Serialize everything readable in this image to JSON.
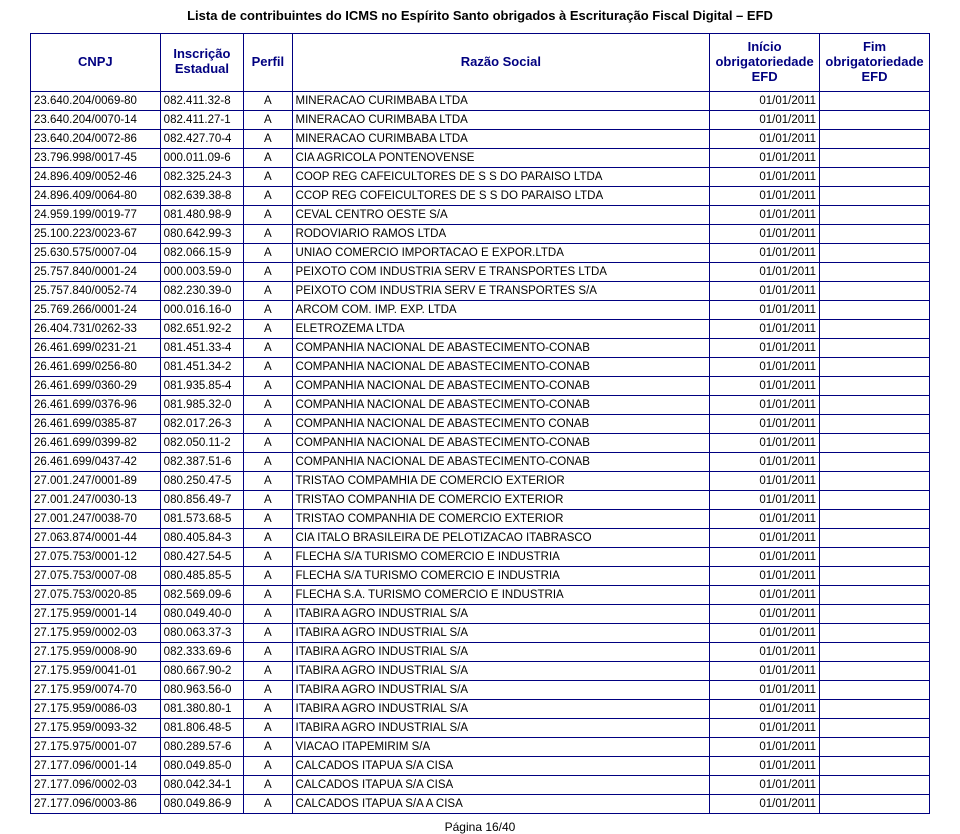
{
  "title": "Lista de contribuintes do ICMS no Espírito Santo obrigados à Escrituração Fiscal Digital – EFD",
  "footer": "Página 16/40",
  "headers": {
    "cnpj": "CNPJ",
    "inscricao": "Inscrição Estadual",
    "perfil": "Perfil",
    "razao": "Razão Social",
    "inicio": "Início obrigatoriedade EFD",
    "fim": "Fim obrigatoriedade EFD"
  },
  "rows": [
    [
      "23.640.204/0069-80",
      "082.411.32-8",
      "A",
      "MINERACAO CURIMBABA LTDA",
      "01/01/2011",
      ""
    ],
    [
      "23.640.204/0070-14",
      "082.411.27-1",
      "A",
      "MINERACAO CURIMBABA LTDA",
      "01/01/2011",
      ""
    ],
    [
      "23.640.204/0072-86",
      "082.427.70-4",
      "A",
      "MINERACAO CURIMBABA LTDA",
      "01/01/2011",
      ""
    ],
    [
      "23.796.998/0017-45",
      "000.011.09-6",
      "A",
      "CIA AGRICOLA PONTENOVENSE",
      "01/01/2011",
      ""
    ],
    [
      "24.896.409/0052-46",
      "082.325.24-3",
      "A",
      "COOP REG CAFEICULTORES DE S S DO PARAISO LTDA",
      "01/01/2011",
      ""
    ],
    [
      "24.896.409/0064-80",
      "082.639.38-8",
      "A",
      "CCOP REG COFEICULTORES DE S S DO PARAISO LTDA",
      "01/01/2011",
      ""
    ],
    [
      "24.959.199/0019-77",
      "081.480.98-9",
      "A",
      "CEVAL CENTRO OESTE S/A",
      "01/01/2011",
      ""
    ],
    [
      "25.100.223/0023-67",
      "080.642.99-3",
      "A",
      "RODOVIARIO RAMOS LTDA",
      "01/01/2011",
      ""
    ],
    [
      "25.630.575/0007-04",
      "082.066.15-9",
      "A",
      "UNIAO COMERCIO IMPORTACAO E EXPOR.LTDA",
      "01/01/2011",
      ""
    ],
    [
      "25.757.840/0001-24",
      "000.003.59-0",
      "A",
      "PEIXOTO COM INDUSTRIA SERV E TRANSPORTES LTDA",
      "01/01/2011",
      ""
    ],
    [
      "25.757.840/0052-74",
      "082.230.39-0",
      "A",
      "PEIXOTO COM INDUSTRIA SERV E TRANSPORTES S/A",
      "01/01/2011",
      ""
    ],
    [
      "25.769.266/0001-24",
      "000.016.16-0",
      "A",
      "ARCOM COM. IMP. EXP. LTDA",
      "01/01/2011",
      ""
    ],
    [
      "26.404.731/0262-33",
      "082.651.92-2",
      "A",
      "ELETROZEMA LTDA",
      "01/01/2011",
      ""
    ],
    [
      "26.461.699/0231-21",
      "081.451.33-4",
      "A",
      "COMPANHIA NACIONAL DE ABASTECIMENTO-CONAB",
      "01/01/2011",
      ""
    ],
    [
      "26.461.699/0256-80",
      "081.451.34-2",
      "A",
      "COMPANHIA NACIONAL DE ABASTECIMENTO-CONAB",
      "01/01/2011",
      ""
    ],
    [
      "26.461.699/0360-29",
      "081.935.85-4",
      "A",
      "COMPANHIA NACIONAL DE ABASTECIMENTO-CONAB",
      "01/01/2011",
      ""
    ],
    [
      "26.461.699/0376-96",
      "081.985.32-0",
      "A",
      "COMPANHIA NACIONAL DE ABASTECIMENTO-CONAB",
      "01/01/2011",
      ""
    ],
    [
      "26.461.699/0385-87",
      "082.017.26-3",
      "A",
      "COMPANHIA NACIONAL DE ABASTECIMENTO CONAB",
      "01/01/2011",
      ""
    ],
    [
      "26.461.699/0399-82",
      "082.050.11-2",
      "A",
      "COMPANHIA NACIONAL DE ABASTECIMENTO-CONAB",
      "01/01/2011",
      ""
    ],
    [
      "26.461.699/0437-42",
      "082.387.51-6",
      "A",
      "COMPANHIA NACIONAL DE ABASTECIMENTO-CONAB",
      "01/01/2011",
      ""
    ],
    [
      "27.001.247/0001-89",
      "080.250.47-5",
      "A",
      "TRISTAO COMPAMHIA DE COMERCIO EXTERIOR",
      "01/01/2011",
      ""
    ],
    [
      "27.001.247/0030-13",
      "080.856.49-7",
      "A",
      "TRISTAO COMPANHIA DE COMERCIO EXTERIOR",
      "01/01/2011",
      ""
    ],
    [
      "27.001.247/0038-70",
      "081.573.68-5",
      "A",
      "TRISTAO COMPANHIA DE COMERCIO EXTERIOR",
      "01/01/2011",
      ""
    ],
    [
      "27.063.874/0001-44",
      "080.405.84-3",
      "A",
      "CIA ITALO BRASILEIRA DE PELOTIZACAO ITABRASCO",
      "01/01/2011",
      ""
    ],
    [
      "27.075.753/0001-12",
      "080.427.54-5",
      "A",
      "FLECHA S/A TURISMO COMERCIO E INDUSTRIA",
      "01/01/2011",
      ""
    ],
    [
      "27.075.753/0007-08",
      "080.485.85-5",
      "A",
      "FLECHA S/A TURISMO COMERCIO E INDUSTRIA",
      "01/01/2011",
      ""
    ],
    [
      "27.075.753/0020-85",
      "082.569.09-6",
      "A",
      "FLECHA S.A. TURISMO COMERCIO E INDUSTRIA",
      "01/01/2011",
      ""
    ],
    [
      "27.175.959/0001-14",
      "080.049.40-0",
      "A",
      "ITABIRA AGRO INDUSTRIAL S/A",
      "01/01/2011",
      ""
    ],
    [
      "27.175.959/0002-03",
      "080.063.37-3",
      "A",
      "ITABIRA AGRO INDUSTRIAL S/A",
      "01/01/2011",
      ""
    ],
    [
      "27.175.959/0008-90",
      "082.333.69-6",
      "A",
      "ITABIRA AGRO INDUSTRIAL S/A",
      "01/01/2011",
      ""
    ],
    [
      "27.175.959/0041-01",
      "080.667.90-2",
      "A",
      "ITABIRA AGRO INDUSTRIAL S/A",
      "01/01/2011",
      ""
    ],
    [
      "27.175.959/0074-70",
      "080.963.56-0",
      "A",
      "ITABIRA AGRO INDUSTRIAL S/A",
      "01/01/2011",
      ""
    ],
    [
      "27.175.959/0086-03",
      "081.380.80-1",
      "A",
      "ITABIRA AGRO INDUSTRIAL S/A",
      "01/01/2011",
      ""
    ],
    [
      "27.175.959/0093-32",
      "081.806.48-5",
      "A",
      "ITABIRA AGRO INDUSTRIAL S/A",
      "01/01/2011",
      ""
    ],
    [
      "27.175.975/0001-07",
      "080.289.57-6",
      "A",
      "VIACAO ITAPEMIRIM S/A",
      "01/01/2011",
      ""
    ],
    [
      "27.177.096/0001-14",
      "080.049.85-0",
      "A",
      "CALCADOS ITAPUA S/A CISA",
      "01/01/2011",
      ""
    ],
    [
      "27.177.096/0002-03",
      "080.042.34-1",
      "A",
      "CALCADOS ITAPUA S/A CISA",
      "01/01/2011",
      ""
    ],
    [
      "27.177.096/0003-86",
      "080.049.86-9",
      "A",
      "CALCADOS ITAPUA S/A A CISA",
      "01/01/2011",
      ""
    ]
  ]
}
